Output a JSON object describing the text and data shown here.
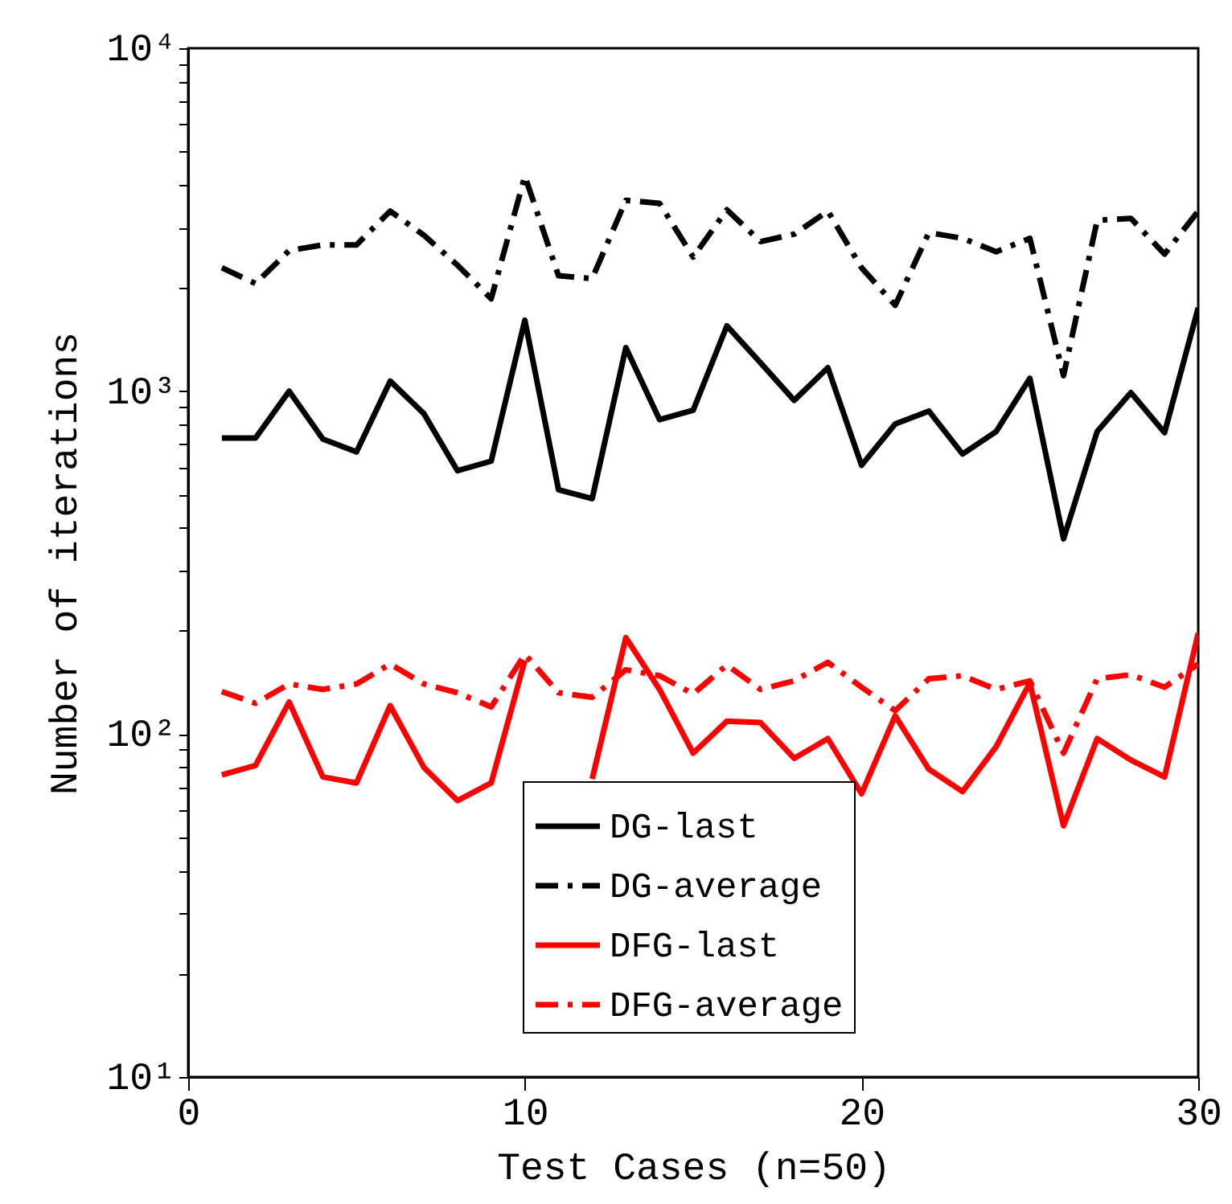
{
  "chart_data": {
    "type": "line",
    "xlabel": "Test Cases (n=50)",
    "ylabel": "Number of iterations",
    "log": "y",
    "x": [
      1,
      2,
      3,
      4,
      5,
      6,
      7,
      8,
      9,
      10,
      11,
      12,
      13,
      14,
      15,
      16,
      17,
      18,
      19,
      20,
      21,
      22,
      23,
      24,
      25,
      26,
      27,
      28,
      29,
      30
    ],
    "xlim": [
      0,
      30
    ],
    "xticks": [
      0,
      10,
      20,
      30
    ],
    "ylim": [
      10,
      10000
    ],
    "yticks": [
      {
        "value": 10,
        "label": "10¹"
      },
      {
        "value": 20,
        "label": null
      },
      {
        "value": 30,
        "label": null
      },
      {
        "value": 40,
        "label": null
      },
      {
        "value": 50,
        "label": null
      },
      {
        "value": 60,
        "label": null
      },
      {
        "value": 70,
        "label": null
      },
      {
        "value": 80,
        "label": null
      },
      {
        "value": 90,
        "label": null
      },
      {
        "value": 100,
        "label": "10²"
      },
      {
        "value": 200,
        "label": null
      },
      {
        "value": 300,
        "label": null
      },
      {
        "value": 400,
        "label": null
      },
      {
        "value": 500,
        "label": null
      },
      {
        "value": 600,
        "label": null
      },
      {
        "value": 700,
        "label": null
      },
      {
        "value": 800,
        "label": null
      },
      {
        "value": 900,
        "label": null
      },
      {
        "value": 1000,
        "label": "10³"
      },
      {
        "value": 2000,
        "label": null
      },
      {
        "value": 3000,
        "label": null
      },
      {
        "value": 4000,
        "label": null
      },
      {
        "value": 5000,
        "label": null
      },
      {
        "value": 6000,
        "label": null
      },
      {
        "value": 7000,
        "label": null
      },
      {
        "value": 8000,
        "label": null
      },
      {
        "value": 9000,
        "label": null
      },
      {
        "value": 10000,
        "label": "10⁴"
      }
    ],
    "grid": false,
    "legend": "bottom right",
    "marker": "none",
    "series": [
      {
        "name": "DG-last",
        "color": "#000000",
        "line_style": "solid",
        "values": [
          730,
          730,
          1000,
          725,
          665,
          1070,
          860,
          586,
          625,
          1610,
          516,
          486,
          1340,
          826,
          880,
          1550,
          1210,
          940,
          1170,
          608,
          802,
          875,
          656,
          763,
          1090,
          371,
          763,
          990,
          757,
          1750
        ]
      },
      {
        "name": "DG-average",
        "color": "#000000",
        "line_style": "dashed",
        "values": [
          2290,
          2060,
          2570,
          2670,
          2670,
          3350,
          2850,
          2330,
          1860,
          4240,
          2170,
          2130,
          3600,
          3530,
          2460,
          3380,
          2730,
          2870,
          3350,
          2290,
          1780,
          2900,
          2790,
          2550,
          2790,
          1110,
          3150,
          3190,
          2510,
          3350
        ]
      },
      {
        "name": "DFG-last",
        "color": "#ff0000",
        "line_style": "solid",
        "values": [
          76,
          81,
          124,
          75,
          72,
          121,
          80,
          64,
          72,
          164,
          null,
          74,
          191,
          135,
          88,
          109,
          108,
          85,
          97,
          67,
          113,
          79,
          68,
          92,
          141,
          54,
          97,
          84,
          75,
          197
        ]
      },
      {
        "name": "DFG-average",
        "color": "#ff0000",
        "line_style": "dashed",
        "values": [
          133,
          123,
          140,
          135,
          140,
          160,
          140,
          132,
          120,
          171,
          132,
          128,
          154,
          148,
          131,
          159,
          135,
          143,
          162,
          137,
          117,
          145,
          148,
          135,
          143,
          88,
          145,
          149,
          137,
          160
        ]
      }
    ]
  }
}
